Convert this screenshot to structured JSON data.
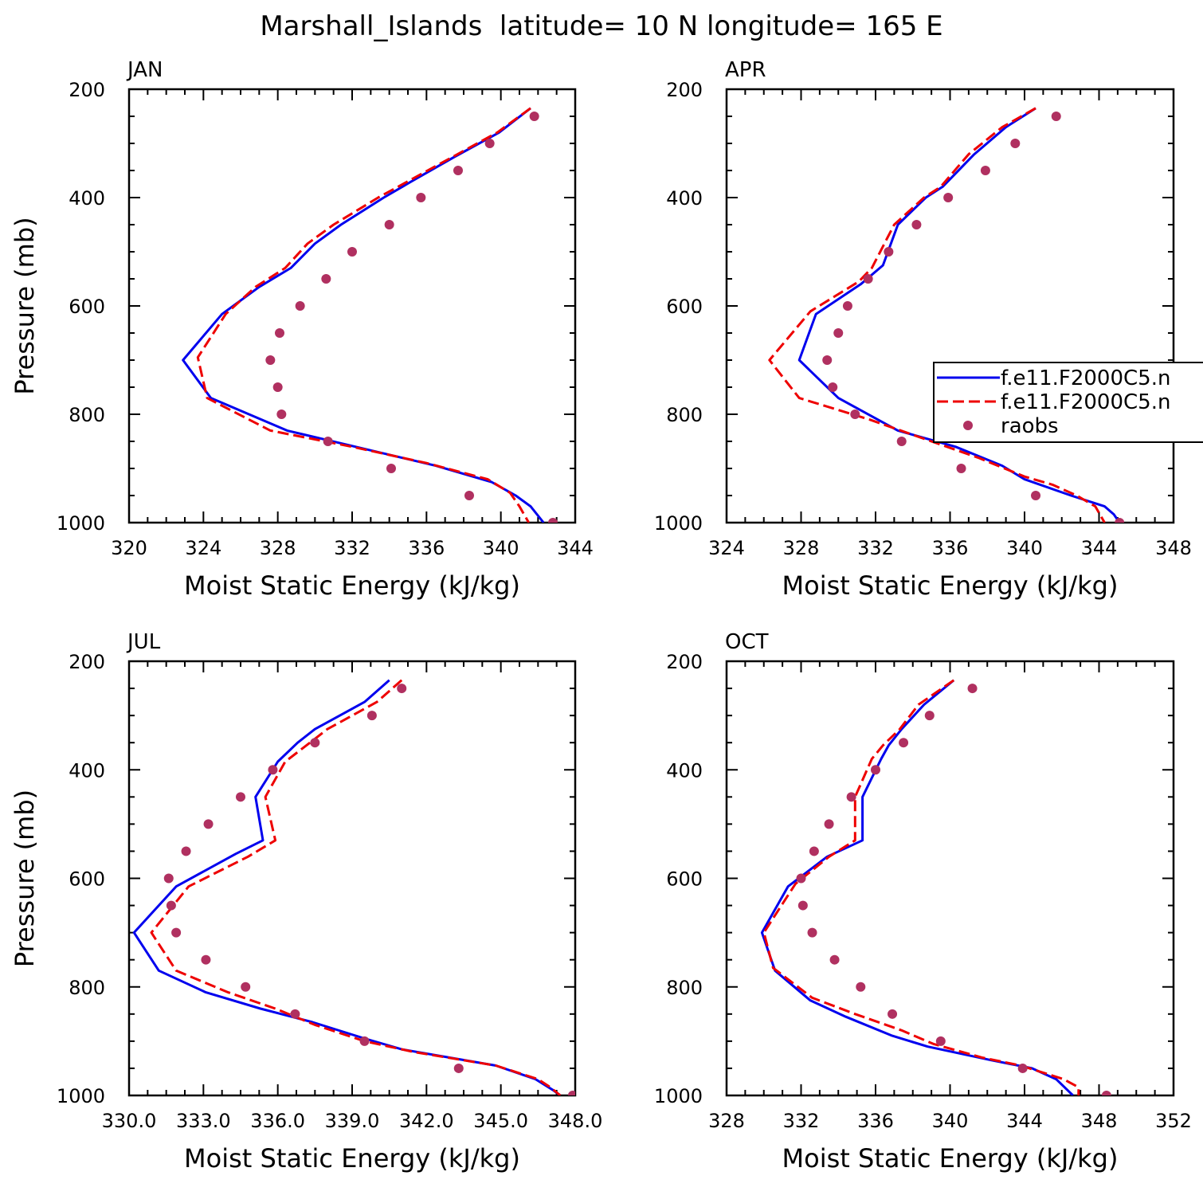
{
  "title": "Marshall_Islands  latitude= 10 N longitude= 165 E",
  "colors": {
    "model1": "#0000ee",
    "model2": "#ee0000",
    "raobs": "#b03060"
  },
  "legend": {
    "panel": 1,
    "entries": [
      {
        "label": "f.e11.F2000C5.n",
        "style": "solid",
        "color": "#0000ee"
      },
      {
        "label": "f.e11.F2000C5.n",
        "style": "dashed",
        "color": "#ee0000"
      },
      {
        "label": "raobs",
        "style": "dot",
        "color": "#b03060"
      }
    ]
  },
  "chart_data": [
    {
      "type": "line",
      "title": "JAN",
      "xlabel": "Moist Static Energy (kJ/kg)",
      "ylabel": "Pressure (mb)",
      "xlim": [
        320,
        344
      ],
      "xticks": [
        "320",
        "324",
        "328",
        "332",
        "336",
        "340",
        "344"
      ],
      "ylim": [
        1000,
        200
      ],
      "yticks": [
        "200",
        "400",
        "600",
        "800",
        "1000"
      ],
      "series": [
        {
          "kind": "model1",
          "points": [
            [
              341.6,
              235
            ],
            [
              339.9,
              280
            ],
            [
              337.5,
              325
            ],
            [
              335.2,
              370
            ],
            [
              333.7,
              400
            ],
            [
              331.4,
              450
            ],
            [
              330.0,
              485
            ],
            [
              328.7,
              530
            ],
            [
              327.0,
              565
            ],
            [
              325.0,
              615
            ],
            [
              322.9,
              700
            ],
            [
              324.4,
              770
            ],
            [
              328.5,
              830
            ],
            [
              332.8,
              865
            ],
            [
              336.5,
              895
            ],
            [
              339.5,
              925
            ],
            [
              340.8,
              950
            ],
            [
              341.6,
              970
            ],
            [
              342.3,
              1000
            ]
          ]
        },
        {
          "kind": "model2",
          "points": [
            [
              341.6,
              235
            ],
            [
              339.8,
              280
            ],
            [
              337.4,
              325
            ],
            [
              335.0,
              370
            ],
            [
              333.4,
              400
            ],
            [
              331.0,
              450
            ],
            [
              329.6,
              485
            ],
            [
              328.4,
              530
            ],
            [
              326.8,
              565
            ],
            [
              325.2,
              615
            ],
            [
              323.7,
              695
            ],
            [
              324.2,
              770
            ],
            [
              327.6,
              830
            ],
            [
              332.0,
              860
            ],
            [
              336.0,
              890
            ],
            [
              339.3,
              920
            ],
            [
              340.5,
              945
            ],
            [
              341.0,
              970
            ],
            [
              341.5,
              1000
            ]
          ]
        },
        {
          "kind": "raobs",
          "points": [
            [
              341.8,
              250
            ],
            [
              339.4,
              300
            ],
            [
              337.7,
              350
            ],
            [
              335.7,
              400
            ],
            [
              334.0,
              450
            ],
            [
              332.0,
              500
            ],
            [
              330.6,
              550
            ],
            [
              329.2,
              600
            ],
            [
              328.1,
              650
            ],
            [
              327.6,
              700
            ],
            [
              328.0,
              750
            ],
            [
              328.2,
              800
            ],
            [
              330.7,
              850
            ],
            [
              334.1,
              900
            ],
            [
              338.3,
              950
            ],
            [
              342.8,
              1000
            ]
          ]
        }
      ]
    },
    {
      "type": "line",
      "title": "APR",
      "xlabel": "Moist Static Energy (kJ/kg)",
      "ylabel": "",
      "xlim": [
        324,
        348
      ],
      "xticks": [
        "324",
        "328",
        "332",
        "336",
        "340",
        "344",
        "348"
      ],
      "ylim": [
        1000,
        200
      ],
      "yticks": [
        "200",
        "400",
        "600",
        "800",
        "1000"
      ],
      "series": [
        {
          "kind": "model1",
          "points": [
            [
              340.6,
              235
            ],
            [
              339.0,
              270
            ],
            [
              337.3,
              320
            ],
            [
              335.6,
              380
            ],
            [
              334.7,
              400
            ],
            [
              333.2,
              450
            ],
            [
              332.4,
              525
            ],
            [
              331.2,
              560
            ],
            [
              328.8,
              615
            ],
            [
              327.9,
              700
            ],
            [
              330.0,
              770
            ],
            [
              333.2,
              830
            ],
            [
              336.3,
              860
            ],
            [
              338.8,
              895
            ],
            [
              340.0,
              920
            ],
            [
              342.5,
              950
            ],
            [
              344.3,
              970
            ],
            [
              344.8,
              985
            ],
            [
              345.1,
              1000
            ]
          ]
        },
        {
          "kind": "model2",
          "points": [
            [
              340.6,
              235
            ],
            [
              338.8,
              270
            ],
            [
              337.0,
              320
            ],
            [
              335.5,
              380
            ],
            [
              334.6,
              400
            ],
            [
              333.0,
              450
            ],
            [
              331.8,
              530
            ],
            [
              331.1,
              555
            ],
            [
              328.5,
              610
            ],
            [
              326.3,
              700
            ],
            [
              327.9,
              770
            ],
            [
              331.7,
              810
            ],
            [
              335.0,
              850
            ],
            [
              337.5,
              880
            ],
            [
              340.0,
              915
            ],
            [
              341.5,
              930
            ],
            [
              342.8,
              950
            ],
            [
              343.8,
              970
            ],
            [
              344.3,
              1000
            ]
          ]
        },
        {
          "kind": "raobs",
          "points": [
            [
              341.7,
              250
            ],
            [
              339.5,
              300
            ],
            [
              337.9,
              350
            ],
            [
              335.9,
              400
            ],
            [
              334.2,
              450
            ],
            [
              332.7,
              500
            ],
            [
              331.6,
              550
            ],
            [
              330.5,
              600
            ],
            [
              330.0,
              650
            ],
            [
              329.4,
              700
            ],
            [
              329.7,
              750
            ],
            [
              330.9,
              800
            ],
            [
              333.4,
              850
            ],
            [
              336.6,
              900
            ],
            [
              340.6,
              950
            ],
            [
              345.1,
              1000
            ]
          ]
        }
      ]
    },
    {
      "type": "line",
      "title": "JUL",
      "xlabel": "Moist Static Energy (kJ/kg)",
      "ylabel": "Pressure (mb)",
      "xlim": [
        330,
        348
      ],
      "xticks": [
        "330.0",
        "333.0",
        "336.0",
        "339.0",
        "342.0",
        "345.0",
        "348.0"
      ],
      "ylim": [
        1000,
        200
      ],
      "yticks": [
        "200",
        "400",
        "600",
        "800",
        "1000"
      ],
      "series": [
        {
          "kind": "model1",
          "points": [
            [
              340.5,
              235
            ],
            [
              339.5,
              275
            ],
            [
              337.5,
              325
            ],
            [
              336.8,
              350
            ],
            [
              336.0,
              385
            ],
            [
              335.1,
              450
            ],
            [
              335.4,
              530
            ],
            [
              334.3,
              555
            ],
            [
              331.9,
              615
            ],
            [
              330.2,
              700
            ],
            [
              331.2,
              770
            ],
            [
              333.1,
              810
            ],
            [
              335.3,
              840
            ],
            [
              337.4,
              865
            ],
            [
              339.5,
              895
            ],
            [
              341.0,
              915
            ],
            [
              344.8,
              945
            ],
            [
              346.4,
              970
            ],
            [
              347.1,
              990
            ],
            [
              347.4,
              1000
            ]
          ]
        },
        {
          "kind": "model2",
          "points": [
            [
              341.0,
              235
            ],
            [
              340.0,
              275
            ],
            [
              338.0,
              325
            ],
            [
              337.3,
              350
            ],
            [
              336.3,
              385
            ],
            [
              335.5,
              450
            ],
            [
              335.9,
              530
            ],
            [
              334.8,
              560
            ],
            [
              332.4,
              615
            ],
            [
              330.9,
              700
            ],
            [
              331.9,
              770
            ],
            [
              334.0,
              810
            ],
            [
              335.9,
              840
            ],
            [
              337.5,
              870
            ],
            [
              339.5,
              900
            ],
            [
              341.5,
              920
            ],
            [
              344.8,
              945
            ],
            [
              346.5,
              970
            ],
            [
              347.0,
              985
            ],
            [
              347.4,
              1000
            ]
          ]
        },
        {
          "kind": "raobs",
          "points": [
            [
              341.0,
              250
            ],
            [
              339.8,
              300
            ],
            [
              337.5,
              350
            ],
            [
              335.8,
              400
            ],
            [
              334.5,
              450
            ],
            [
              333.2,
              500
            ],
            [
              332.3,
              550
            ],
            [
              331.6,
              600
            ],
            [
              331.7,
              650
            ],
            [
              331.9,
              700
            ],
            [
              333.1,
              750
            ],
            [
              334.7,
              800
            ],
            [
              336.7,
              850
            ],
            [
              339.5,
              900
            ],
            [
              343.3,
              950
            ],
            [
              347.9,
              1000
            ]
          ]
        }
      ]
    },
    {
      "type": "line",
      "title": "OCT",
      "xlabel": "Moist Static Energy (kJ/kg)",
      "ylabel": "",
      "xlim": [
        328,
        352
      ],
      "xticks": [
        "328",
        "332",
        "336",
        "340",
        "344",
        "348",
        "352"
      ],
      "ylim": [
        1000,
        200
      ],
      "yticks": [
        "200",
        "400",
        "600",
        "800",
        "1000"
      ],
      "series": [
        {
          "kind": "model1",
          "points": [
            [
              340.2,
              235
            ],
            [
              338.6,
              280
            ],
            [
              337.4,
              325
            ],
            [
              336.7,
              355
            ],
            [
              336.3,
              380
            ],
            [
              335.3,
              450
            ],
            [
              335.3,
              530
            ],
            [
              333.4,
              560
            ],
            [
              331.3,
              615
            ],
            [
              329.9,
              700
            ],
            [
              330.6,
              770
            ],
            [
              332.5,
              825
            ],
            [
              334.4,
              855
            ],
            [
              336.9,
              890
            ],
            [
              338.8,
              910
            ],
            [
              342.2,
              935
            ],
            [
              344.4,
              950
            ],
            [
              345.7,
              970
            ],
            [
              346.6,
              1000
            ]
          ]
        },
        {
          "kind": "model2",
          "points": [
            [
              340.2,
              235
            ],
            [
              338.3,
              280
            ],
            [
              337.3,
              325
            ],
            [
              336.4,
              355
            ],
            [
              335.8,
              380
            ],
            [
              334.9,
              450
            ],
            [
              334.9,
              530
            ],
            [
              333.5,
              560
            ],
            [
              331.7,
              610
            ],
            [
              330.0,
              700
            ],
            [
              330.5,
              765
            ],
            [
              332.6,
              820
            ],
            [
              334.9,
              850
            ],
            [
              337.4,
              880
            ],
            [
              339.1,
              905
            ],
            [
              341.7,
              930
            ],
            [
              343.8,
              945
            ],
            [
              346.1,
              970
            ],
            [
              346.9,
              985
            ],
            [
              346.9,
              1000
            ]
          ]
        },
        {
          "kind": "raobs",
          "points": [
            [
              341.2,
              250
            ],
            [
              338.9,
              300
            ],
            [
              337.5,
              350
            ],
            [
              336.0,
              400
            ],
            [
              334.7,
              450
            ],
            [
              333.5,
              500
            ],
            [
              332.7,
              550
            ],
            [
              332.0,
              600
            ],
            [
              332.1,
              650
            ],
            [
              332.6,
              700
            ],
            [
              333.8,
              750
            ],
            [
              335.2,
              800
            ],
            [
              336.9,
              850
            ],
            [
              339.5,
              900
            ],
            [
              343.9,
              950
            ],
            [
              348.4,
              1000
            ]
          ]
        }
      ]
    }
  ]
}
